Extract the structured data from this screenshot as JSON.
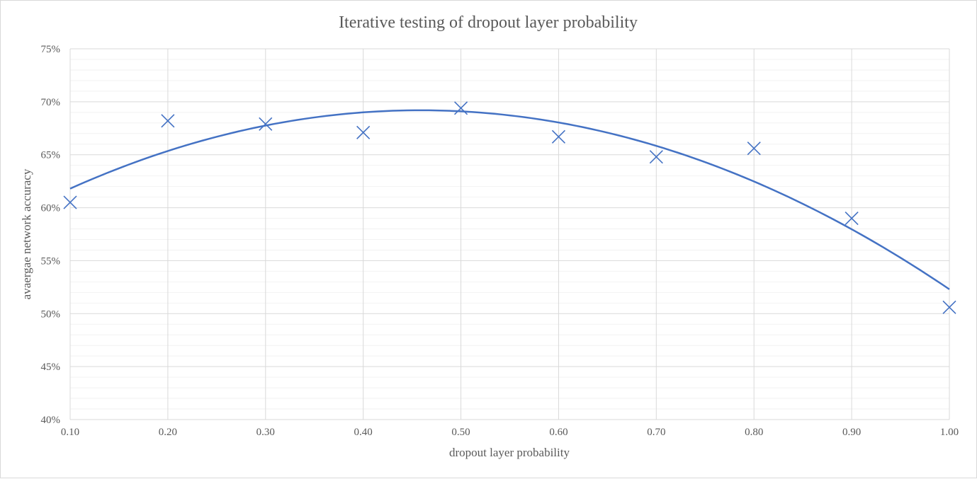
{
  "chart_data": {
    "type": "scatter",
    "title": "Iterative testing of dropout layer probability",
    "xlabel": "dropout layer probability",
    "ylabel": "avaergae network accuracy",
    "xlim": [
      0.1,
      1.0
    ],
    "ylim": [
      0.4,
      0.75
    ],
    "x_ticks": [
      0.1,
      0.2,
      0.3,
      0.4,
      0.5,
      0.6,
      0.7,
      0.8,
      0.9,
      1.0
    ],
    "x_tick_labels": [
      "0.10",
      "0.20",
      "0.30",
      "0.40",
      "0.50",
      "0.60",
      "0.70",
      "0.80",
      "0.90",
      "1.00"
    ],
    "y_ticks": [
      0.4,
      0.45,
      0.5,
      0.55,
      0.6,
      0.65,
      0.7,
      0.75
    ],
    "y_tick_labels": [
      "40%",
      "45%",
      "50%",
      "55%",
      "60%",
      "65%",
      "70%",
      "75%"
    ],
    "grid": true,
    "legend": "none",
    "marker": "x",
    "series": [
      {
        "x": [
          0.1,
          0.2,
          0.3,
          0.4,
          0.5,
          0.6,
          0.7,
          0.8,
          0.9,
          1.0
        ],
        "values": [
          0.605,
          0.682,
          0.679,
          0.671,
          0.694,
          0.667,
          0.648,
          0.656,
          0.59,
          0.506
        ],
        "color": "#4472c4"
      }
    ],
    "trendline": {
      "type": "polynomial",
      "order": 2,
      "color": "#4472c4",
      "x": [
        0.1,
        0.2,
        0.3,
        0.4,
        0.5,
        0.6,
        0.7,
        0.8,
        0.9,
        1.0
      ],
      "values": [
        0.618,
        0.654,
        0.678,
        0.69,
        0.691,
        0.68,
        0.658,
        0.624,
        0.579,
        0.523
      ]
    }
  }
}
